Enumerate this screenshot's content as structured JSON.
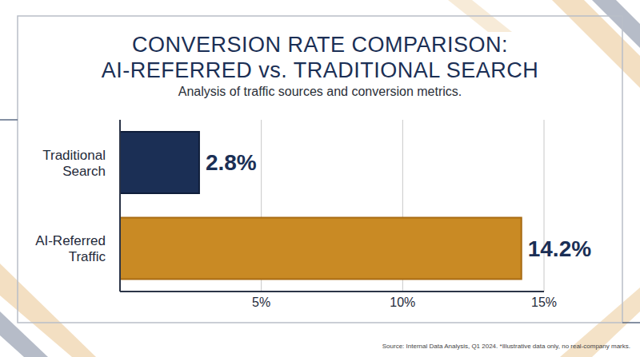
{
  "chart_data": {
    "type": "bar",
    "orientation": "horizontal",
    "title": "CONVERSION RATE COMPARISON: AI-REFERRED vs. TRADITIONAL SEARCH",
    "subtitle": "Analysis of traffic sources and conversion metrics.",
    "categories": [
      "Traditional Search",
      "AI-Referred Traffic"
    ],
    "values": [
      2.8,
      14.2
    ],
    "value_labels": [
      "2.8%",
      "14.2%"
    ],
    "data_labels": true,
    "colors": [
      "#1b2f55",
      "#c98a24"
    ],
    "xlim": [
      0,
      15
    ],
    "xticks": [
      {
        "value": 5,
        "label": "5%"
      },
      {
        "value": 10,
        "label": "10%"
      },
      {
        "value": 15,
        "label": "15%"
      }
    ],
    "grid": true,
    "annotations": [
      "Source: Internal Data Analysis, Q1 2024. *Illustrative data only, no real-company marks."
    ]
  }
}
